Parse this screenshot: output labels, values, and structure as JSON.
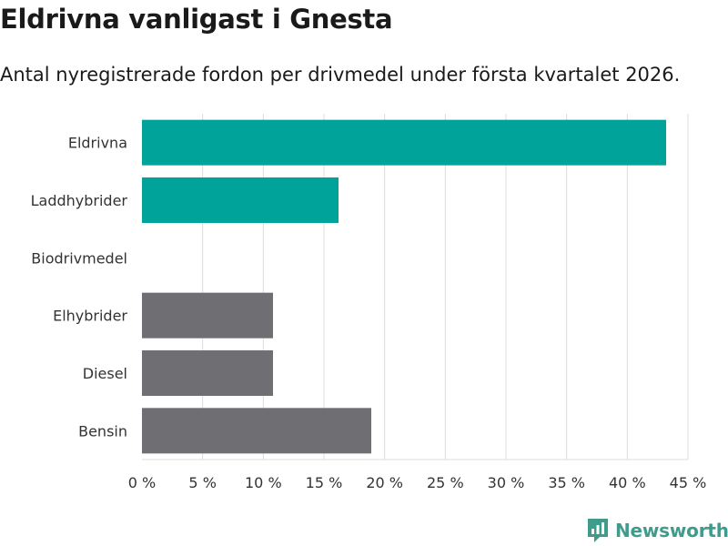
{
  "chart_data": {
    "type": "bar",
    "orientation": "horizontal",
    "title": "Eldrivna vanligast i Gnesta",
    "subtitle": "Antal nyregistrerade fordon per drivmedel under första kvartalet 2026.",
    "categories": [
      "Eldrivna",
      "Laddhybrider",
      "Biodrivmedel",
      "Elhybrider",
      "Diesel",
      "Bensin"
    ],
    "values": [
      43.2,
      16.2,
      0,
      10.8,
      10.8,
      18.9
    ],
    "bar_colors": [
      "#00a39a",
      "#00a39a",
      "#00a39a",
      "#6e6e73",
      "#6e6e73",
      "#6e6e73"
    ],
    "xlim": [
      0,
      45
    ],
    "xticks": [
      0,
      5,
      10,
      15,
      20,
      25,
      30,
      35,
      40,
      45
    ],
    "tick_suffix": " %",
    "grid": true,
    "xlabel": "",
    "ylabel": ""
  },
  "brand": {
    "name": "Newsworthy",
    "color": "#3f9c8c"
  }
}
